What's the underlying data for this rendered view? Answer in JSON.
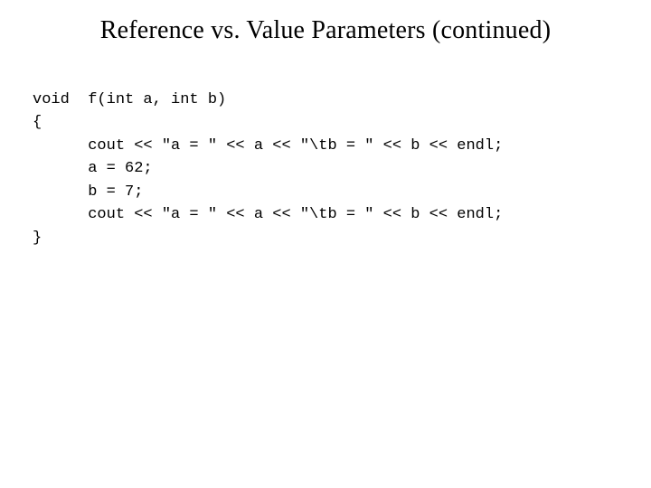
{
  "title": "Reference vs. Value Parameters (continued)",
  "code": {
    "line1": "void  f(int a, int b)",
    "line2": "{",
    "line3": "      cout << \"a = \" << a << \"\\tb = \" << b << endl;",
    "line4": "      a = 62;",
    "line5": "      b = 7;",
    "line6": "      cout << \"a = \" << a << \"\\tb = \" << b << endl;",
    "line7": "}"
  },
  "style": {
    "background_color": "#ffffff",
    "text_color": "#000000",
    "title_font": "Times New Roman",
    "title_fontsize": 28,
    "code_font": "Courier New",
    "code_fontsize": 17,
    "code_line_height": 1.5,
    "slide_width": 720,
    "slide_height": 540
  }
}
